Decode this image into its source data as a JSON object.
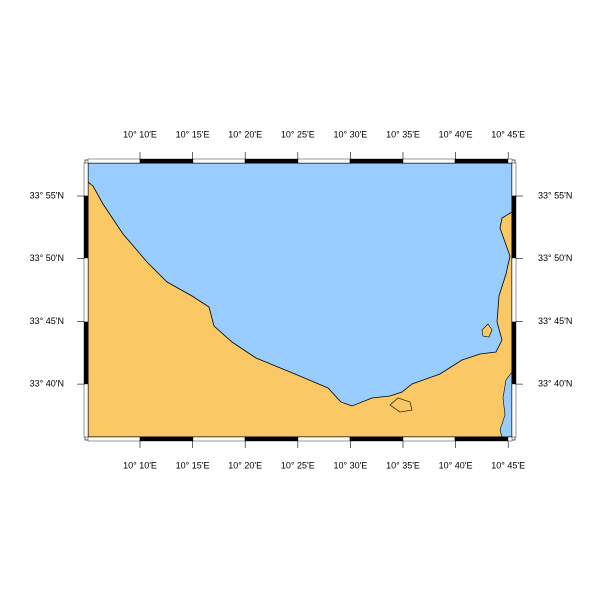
{
  "map": {
    "x_labels": [
      "10° 10'E",
      "10° 15'E",
      "10° 20'E",
      "10° 25'E",
      "10° 30'E",
      "10° 35'E",
      "10° 40'E",
      "10° 45'E"
    ],
    "y_labels": [
      "33° 55'N",
      "33° 50'N",
      "33° 45'N",
      "33° 40'N"
    ]
  }
}
